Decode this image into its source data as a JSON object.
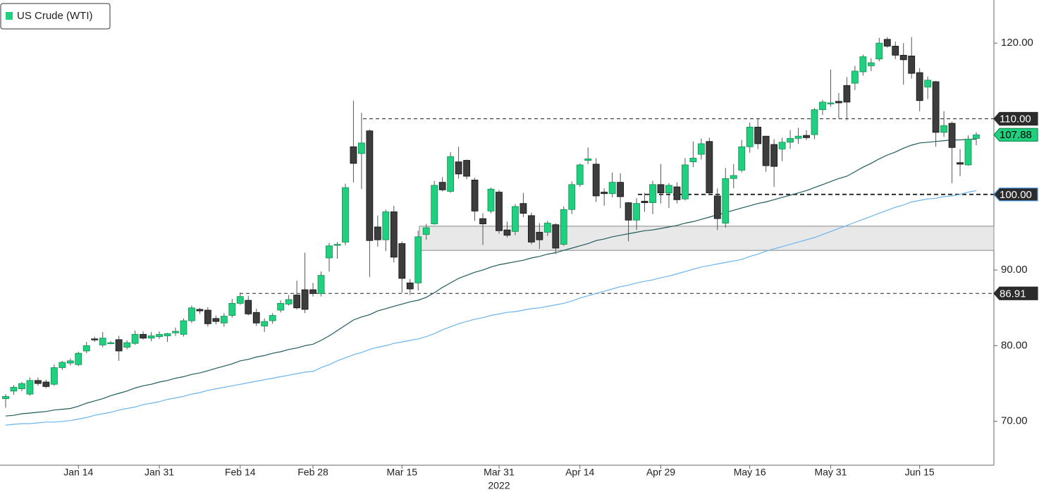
{
  "chart_data": {
    "type": "candlestick",
    "series": [
      {
        "name": "US Crude (WTI)",
        "color": "#1fd17f",
        "down_color": "#3d3d3d",
        "open": [
          73.0,
          74.0,
          74.3,
          73.6,
          75.4,
          75.2,
          74.9,
          77.1,
          77.7,
          77.5,
          79.3,
          80.9,
          80.1,
          80.3,
          80.8,
          79.8,
          80.3,
          81.5,
          81.0,
          81.2,
          81.3,
          81.7,
          81.5,
          83.3,
          84.8,
          84.7,
          83.6,
          83.0,
          84.0,
          85.6,
          86.0,
          84.4,
          82.6,
          83.3,
          84.7,
          85.5,
          86.7,
          87.4,
          87.4,
          86.9,
          91.6,
          93.3,
          93.7,
          106.3,
          105.4,
          108.4,
          95.7,
          94.0,
          97.7,
          93.5,
          88.3,
          88.3,
          94.7,
          96.1,
          101.6,
          100.4,
          104.3,
          104.5,
          101.9,
          96.8,
          97.8,
          100.3,
          95.3,
          95.1,
          98.8,
          97.2,
          95.0,
          95.0,
          96.0,
          93.4,
          98.0,
          101.3,
          104.5,
          104.0,
          100.3,
          100.1,
          101.6,
          98.9,
          96.6,
          99.1,
          98.9,
          101.3,
          100.2,
          101.0,
          99.4,
          104.3,
          105.3,
          107.0,
          99.8,
          96.2,
          102.1,
          103.2,
          106.3,
          108.9,
          107.7,
          106.6,
          106.0,
          106.9,
          107.4,
          107.8,
          107.9,
          111.2,
          112.0,
          112.3,
          114.4,
          114.7,
          116.2,
          117.0,
          117.9,
          120.5,
          119.6,
          118.4,
          118.3,
          116.1,
          114.2,
          114.9,
          108.2,
          109.4,
          104.2,
          103.9,
          107.4
        ],
        "high": [
          73.6,
          74.8,
          75.2,
          75.8,
          75.8,
          75.5,
          77.5,
          78.0,
          78.3,
          79.2,
          80.5,
          81.2,
          81.8,
          80.6,
          81.3,
          80.7,
          82.0,
          81.9,
          81.8,
          81.9,
          81.7,
          82.4,
          83.6,
          85.3,
          85.0,
          85.1,
          84.0,
          84.3,
          86.2,
          87.0,
          86.6,
          84.9,
          83.6,
          84.3,
          86.0,
          86.7,
          88.6,
          92.3,
          88.3,
          89.8,
          93.6,
          93.7,
          101.4,
          112.4,
          110.8,
          108.6,
          97.2,
          98.0,
          98.5,
          93.8,
          88.8,
          95.2,
          96.1,
          101.8,
          102.3,
          105.6,
          106.3,
          104.6,
          102.2,
          97.5,
          100.9,
          100.6,
          96.4,
          98.7,
          100.2,
          97.6,
          96.2,
          96.5,
          96.2,
          98.4,
          101.7,
          104.1,
          106.2,
          104.8,
          100.8,
          102.9,
          102.8,
          99.0,
          99.5,
          100.2,
          101.8,
          104.0,
          101.5,
          101.6,
          104.8,
          107.0,
          107.4,
          107.5,
          100.8,
          103.5,
          104.0,
          107.2,
          109.5,
          110.0,
          107.6,
          107.3,
          107.5,
          108.5,
          108.8,
          108.5,
          111.4,
          112.5,
          116.5,
          113.4,
          115.5,
          117.0,
          118.5,
          118.0,
          120.7,
          120.8,
          120.2,
          120.0,
          120.8,
          116.7,
          115.6,
          115.0,
          111.0,
          109.6,
          106.0,
          107.8,
          108.2
        ],
        "low": [
          71.8,
          73.5,
          74.0,
          73.4,
          74.7,
          74.4,
          74.7,
          76.8,
          77.4,
          77.3,
          79.0,
          80.5,
          79.8,
          80.2,
          78.0,
          79.5,
          80.1,
          80.8,
          80.6,
          80.9,
          80.5,
          81.3,
          81.2,
          83.0,
          84.2,
          82.5,
          82.8,
          82.5,
          83.7,
          85.4,
          84.0,
          82.6,
          81.8,
          82.9,
          84.4,
          85.3,
          84.8,
          84.3,
          86.5,
          86.5,
          89.8,
          91.5,
          93.3,
          101.6,
          100.7,
          89.1,
          93.1,
          92.5,
          91.0,
          87.0,
          86.7,
          87.3,
          94.0,
          96.0,
          100.4,
          100.2,
          102.1,
          102.0,
          96.5,
          93.3,
          97.5,
          94.8,
          94.3,
          94.6,
          97.0,
          93.4,
          92.8,
          94.5,
          92.1,
          93.2,
          97.4,
          101.0,
          104.0,
          99.0,
          98.5,
          99.6,
          98.2,
          93.8,
          95.3,
          97.7,
          97.4,
          98.8,
          98.2,
          98.8,
          99.2,
          103.6,
          104.6,
          100.0,
          95.3,
          95.6,
          100.8,
          102.9,
          105.5,
          106.0,
          103.0,
          101.0,
          104.4,
          106.0,
          106.7,
          107.2,
          107.3,
          110.5,
          111.6,
          110.0,
          109.8,
          113.8,
          115.7,
          116.3,
          117.6,
          119.4,
          117.9,
          114.5,
          115.3,
          111.0,
          112.6,
          106.3,
          107.6,
          101.5,
          102.4,
          103.8,
          106.5
        ],
        "close": [
          73.3,
          74.5,
          75.0,
          75.4,
          75.0,
          74.6,
          77.1,
          77.8,
          78.0,
          79.0,
          80.0,
          80.8,
          81.0,
          80.4,
          79.3,
          80.4,
          81.5,
          81.0,
          81.3,
          81.5,
          81.6,
          81.9,
          83.3,
          85.0,
          84.6,
          82.9,
          83.2,
          83.9,
          85.6,
          86.5,
          84.2,
          83.0,
          83.2,
          84.0,
          85.6,
          86.1,
          85.0,
          84.8,
          86.9,
          89.3,
          93.2,
          93.4,
          100.9,
          104.1,
          106.8,
          93.9,
          94.0,
          97.7,
          91.7,
          88.9,
          87.5,
          94.4,
          95.6,
          101.2,
          100.6,
          105.0,
          102.7,
          102.4,
          97.8,
          96.1,
          100.7,
          95.2,
          94.6,
          98.4,
          97.5,
          93.7,
          94.0,
          96.2,
          92.9,
          98.0,
          101.3,
          103.9,
          104.7,
          99.8,
          100.1,
          101.6,
          99.7,
          96.6,
          98.8,
          98.9,
          101.3,
          100.2,
          101.2,
          99.3,
          103.9,
          104.8,
          106.7,
          100.2,
          96.8,
          102.1,
          102.5,
          106.3,
          108.9,
          106.7,
          103.8,
          103.7,
          106.9,
          107.4,
          107.7,
          107.5,
          111.2,
          112.2,
          112.1,
          112.1,
          112.2,
          116.3,
          118.2,
          117.4,
          120.0,
          119.6,
          118.4,
          117.8,
          116.0,
          112.4,
          115.1,
          108.2,
          109.1,
          106.2,
          104.0,
          107.3,
          107.88
        ]
      }
    ],
    "lines": [
      {
        "color": "#1f5c5c",
        "values": [
          70.7,
          70.8,
          71.0,
          71.1,
          71.2,
          71.3,
          71.5,
          71.6,
          71.7,
          72.0,
          72.4,
          72.7,
          73.0,
          73.4,
          73.7,
          74.0,
          74.4,
          74.7,
          74.9,
          75.2,
          75.4,
          75.7,
          75.9,
          76.2,
          76.4,
          76.7,
          77.0,
          77.3,
          77.6,
          78.0,
          78.2,
          78.5,
          78.7,
          79.0,
          79.2,
          79.5,
          79.7,
          80.0,
          80.2,
          80.7,
          81.3,
          82.0,
          82.7,
          83.4,
          83.8,
          84.1,
          84.6,
          84.9,
          85.2,
          85.5,
          85.8,
          86.0,
          86.4,
          87.0,
          87.7,
          88.3,
          88.9,
          89.3,
          89.7,
          90.0,
          90.4,
          90.7,
          90.9,
          91.1,
          91.3,
          91.6,
          91.8,
          92.1,
          92.3,
          92.6,
          92.9,
          93.2,
          93.5,
          93.9,
          94.1,
          94.4,
          94.6,
          94.8,
          95.0,
          95.2,
          95.3,
          95.5,
          95.7,
          95.9,
          96.2,
          96.4,
          96.7,
          97.0,
          97.3,
          97.6,
          97.9,
          98.2,
          98.5,
          98.8,
          99.0,
          99.3,
          99.6,
          99.9,
          100.2,
          100.5,
          100.9,
          101.3,
          101.7,
          102.1,
          102.4,
          103.0,
          103.6,
          104.1,
          104.7,
          105.2,
          105.6,
          106.1,
          106.5,
          106.8,
          106.9,
          107.0,
          107.1,
          107.2,
          107.2,
          107.3,
          107.3
        ]
      },
      {
        "color": "#6cb4ee",
        "values": [
          69.5,
          69.6,
          69.7,
          69.7,
          69.8,
          69.9,
          69.9,
          70.0,
          70.1,
          70.3,
          70.5,
          70.8,
          71.0,
          71.2,
          71.5,
          71.7,
          71.9,
          72.2,
          72.4,
          72.6,
          72.9,
          73.1,
          73.3,
          73.6,
          73.8,
          74.1,
          74.3,
          74.5,
          74.7,
          74.9,
          75.1,
          75.3,
          75.5,
          75.7,
          75.9,
          76.1,
          76.3,
          76.5,
          76.6,
          77.1,
          77.5,
          78.0,
          78.4,
          78.8,
          79.1,
          79.5,
          79.8,
          80.0,
          80.3,
          80.5,
          80.7,
          80.9,
          81.2,
          81.6,
          82.1,
          82.5,
          82.9,
          83.2,
          83.5,
          83.7,
          84.0,
          84.2,
          84.4,
          84.5,
          84.7,
          84.9,
          85.0,
          85.2,
          85.4,
          85.6,
          85.9,
          86.3,
          86.6,
          86.9,
          87.2,
          87.5,
          87.8,
          88.0,
          88.3,
          88.5,
          88.7,
          89.0,
          89.2,
          89.5,
          89.8,
          90.1,
          90.4,
          90.6,
          90.8,
          91.0,
          91.2,
          91.4,
          91.8,
          92.1,
          92.5,
          92.8,
          93.1,
          93.4,
          93.7,
          94.0,
          94.3,
          94.7,
          95.1,
          95.5,
          95.9,
          96.3,
          96.7,
          97.1,
          97.5,
          97.9,
          98.3,
          98.6,
          99.0,
          99.2,
          99.4,
          99.5,
          99.7,
          99.8,
          100.0,
          100.3,
          100.5
        ]
      }
    ],
    "categories": [
      null,
      null,
      null,
      null,
      null,
      null,
      null,
      null,
      null,
      "Jan 14",
      null,
      null,
      null,
      null,
      null,
      null,
      null,
      null,
      null,
      "Jan 31",
      null,
      null,
      null,
      null,
      null,
      null,
      null,
      null,
      null,
      "Feb 14",
      null,
      null,
      null,
      null,
      null,
      null,
      null,
      null,
      "Feb 28",
      null,
      null,
      null,
      null,
      null,
      null,
      null,
      null,
      null,
      null,
      "Mar 15",
      null,
      null,
      null,
      null,
      null,
      null,
      null,
      null,
      null,
      null,
      null,
      "Mar 31",
      null,
      null,
      null,
      null,
      null,
      null,
      null,
      null,
      null,
      "Apr 14",
      null,
      null,
      null,
      null,
      null,
      null,
      null,
      null,
      null,
      "Apr 29",
      null,
      null,
      null,
      null,
      null,
      null,
      null,
      null,
      null,
      null,
      "May 16",
      null,
      null,
      null,
      null,
      null,
      null,
      null,
      null,
      null,
      "May 31",
      null,
      null,
      null,
      null,
      null,
      null,
      null,
      null,
      null,
      null,
      "Jun 15",
      null,
      null,
      null,
      null,
      null,
      null,
      null
    ],
    "year": "2022",
    "year_under": "Mar 31",
    "ylim": [
      64.2,
      125.7
    ],
    "yticks": [
      {
        "value": 70,
        "label": "70.00"
      },
      {
        "value": 80,
        "label": "80.00"
      },
      {
        "value": 90,
        "label": "90.00"
      },
      {
        "value": 100,
        "label": "100.00"
      },
      {
        "value": 110,
        "label": "110.00"
      },
      {
        "value": 120,
        "label": "120.00"
      }
    ],
    "hlines": [
      {
        "value": 110,
        "label": "110.00"
      },
      {
        "value": 100,
        "label": "100.00"
      },
      {
        "value": 86.91,
        "label": "86.91"
      }
    ],
    "zone": {
      "low": 92.6,
      "high": 95.8
    },
    "last_price": {
      "value": 107.88,
      "label": "107.88"
    }
  }
}
